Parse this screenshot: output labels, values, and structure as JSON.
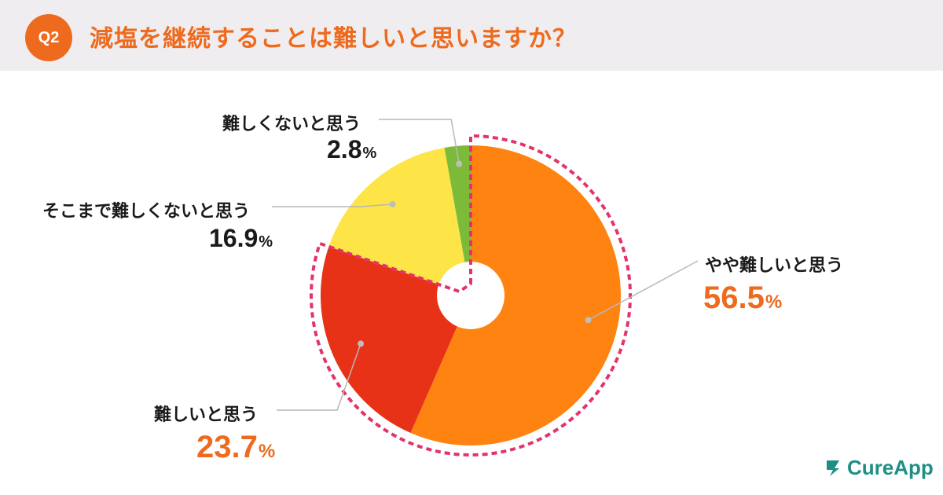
{
  "header": {
    "badge": "Q2",
    "title": "減塩を継続することは難しいと思いますか？"
  },
  "chart_data": {
    "type": "pie",
    "title": "減塩を継続することは難しいと思いますか？",
    "slices": [
      {
        "label": "やや難しいと思う",
        "value": 56.5,
        "display": "56.5",
        "color": "#ff8311",
        "highlight": true
      },
      {
        "label": "難しいと思う",
        "value": 23.7,
        "display": "23.7",
        "color": "#e83218",
        "highlight": true
      },
      {
        "label": "そこまで難しくないと思う",
        "value": 16.9,
        "display": "16.9",
        "color": "#fde447",
        "highlight": false
      },
      {
        "label": "難しくないと思う",
        "value": 2.8,
        "display": "2.8",
        "color": "#7cbb3a",
        "highlight": false
      }
    ],
    "unit": "%",
    "highlight_color": "#e3336a",
    "donut_hole": true
  },
  "logo": {
    "text": "CureApp",
    "icon": "cureapp-logo-icon",
    "color": "#1f8f86"
  }
}
